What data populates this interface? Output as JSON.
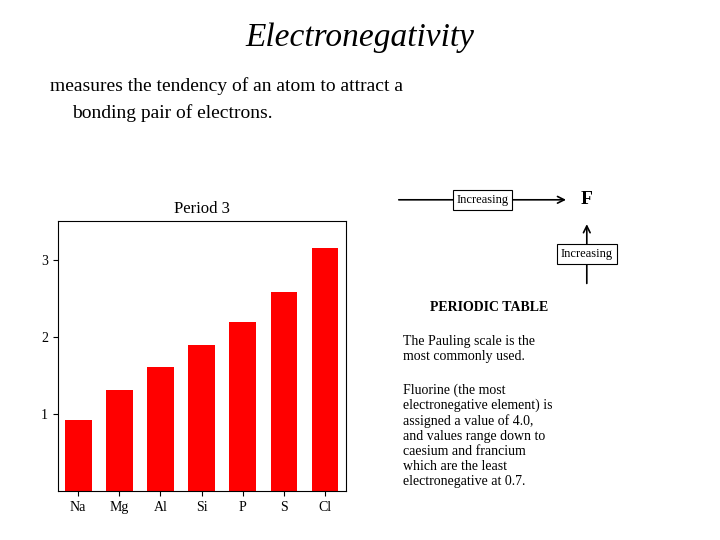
{
  "title": "Electronegativity",
  "subtitle": [
    "measures the tendency of an atom to attract a",
    "bonding pair of electrons."
  ],
  "chart_data": {
    "type": "bar",
    "title": "Period 3",
    "categories": [
      "Na",
      "Mg",
      "Al",
      "Si",
      "P",
      "S",
      "Cl"
    ],
    "values": [
      0.93,
      1.31,
      1.61,
      1.9,
      2.19,
      2.58,
      3.16
    ],
    "color": "#ff0000",
    "ylim": [
      0,
      3.5
    ],
    "yticks": [
      1,
      2,
      3
    ],
    "grid": false
  },
  "annotations": [
    "Increasing",
    "Increasing",
    "F",
    "PERIODIC TABLE",
    "The Pauling scale is the\nmost commonly used.",
    "Fluorine (the most\nelectronegative element) is\nassigned a value of 4.0,\nand values range down to\ncaesium and francium\nwhich are the least\nelectronegative at 0.7."
  ]
}
